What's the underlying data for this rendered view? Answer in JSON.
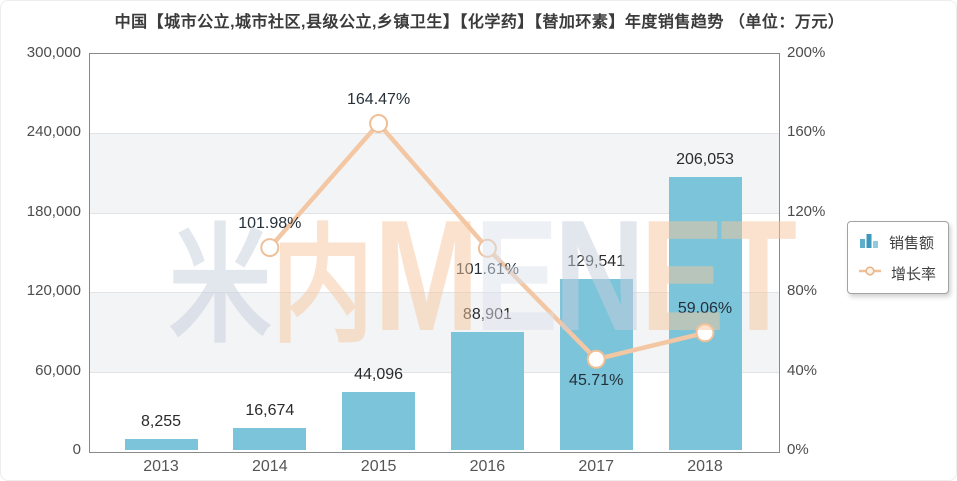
{
  "title": "中国【城市公立,城市社区,县级公立,乡镇卫生】【化学药】【替加环素】年度销售趋势 （单位：万元）",
  "legend": {
    "items": [
      {
        "label": "销售额",
        "icon": "bar-series-icon",
        "color": "#4f9fbe"
      },
      {
        "label": "增长率",
        "icon": "line-series-icon",
        "color": "#f0c09a"
      }
    ]
  },
  "watermark": {
    "text": "米内MENET",
    "segments": [
      {
        "t": "米",
        "c": "#c7cedd",
        "cls": "wm-cjk"
      },
      {
        "t": "内",
        "c": "#f6c79e",
        "cls": "wm-cjk"
      },
      {
        "t": "M",
        "c": "#f6c79e",
        "cls": "wm-lat"
      },
      {
        "t": "E",
        "c": "#dde2ec",
        "cls": "wm-lat"
      },
      {
        "t": "N",
        "c": "#c7cedd",
        "cls": "wm-lat"
      },
      {
        "t": "E",
        "c": "#f6c79e",
        "cls": "wm-lat"
      },
      {
        "t": "T",
        "c": "#f6c79e",
        "cls": "wm-lat"
      }
    ]
  },
  "chart_data": {
    "type": "bar+line",
    "categories": [
      "2013",
      "2014",
      "2015",
      "2016",
      "2017",
      "2018"
    ],
    "series": [
      {
        "name": "销售额",
        "type": "bar",
        "axis": "left",
        "values": [
          8255,
          16674,
          44096,
          88901,
          129541,
          206053
        ],
        "labels": [
          "8,255",
          "16,674",
          "44,096",
          "88,901",
          "129,541",
          "206,053"
        ],
        "color": "#7bc4d9"
      },
      {
        "name": "增长率",
        "type": "line",
        "axis": "right",
        "x": [
          "2014",
          "2015",
          "2016",
          "2017",
          "2018"
        ],
        "values": [
          101.98,
          164.47,
          101.61,
          45.71,
          59.06
        ],
        "labels": [
          "101.98%",
          "164.47%",
          "101.61%",
          "45.71%",
          "59.06%"
        ],
        "color": "#f3c7a4",
        "marker": {
          "fill": "#ffffff",
          "stroke": "#efbf98"
        }
      }
    ],
    "left_axis": {
      "min": 0,
      "max": 300000,
      "step": 60000,
      "tick_labels": [
        "0",
        "60,000",
        "120,000",
        "180,000",
        "240,000",
        "300,000"
      ]
    },
    "right_axis": {
      "min": 0,
      "max": 200,
      "step": 40,
      "tick_labels": [
        "0%",
        "40%",
        "80%",
        "120%",
        "160%",
        "200%"
      ]
    },
    "grid": "horizontal-bands-alternating",
    "legend_position": "right-middle",
    "band_color": "#f3f4f6"
  }
}
